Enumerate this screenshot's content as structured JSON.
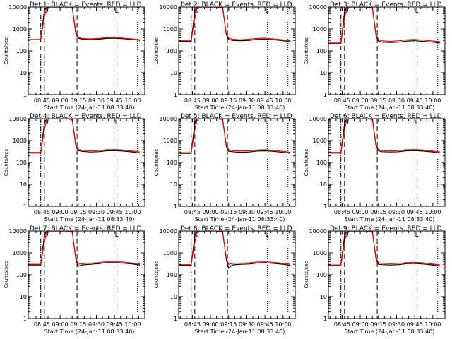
{
  "colors": {
    "events": "#000000",
    "lld": "#ff0000",
    "background": "#ffffff"
  },
  "common": {
    "xlabel": "Start Time (24-Jan-11 08:33:40)",
    "ylabel": "Counts/sec",
    "x_tick_labels": [
      "08:45",
      "09:00",
      "09:15",
      "09:30",
      "09:45",
      "10:00"
    ],
    "y_tick_labels": [
      "1",
      "10",
      "100",
      "1000",
      "10000"
    ],
    "time_ticks": [
      "08:45",
      "09:00",
      "09:15",
      "09:30",
      "09:45",
      "10:00"
    ],
    "xlim": [
      "08:33:40",
      "10:10"
    ],
    "ylim": [
      1,
      10000
    ],
    "y_scale": "log",
    "grid": false,
    "markers": {
      "dash_dot_lines": [
        "08:44"
      ],
      "dashed_lines": [
        "08:47",
        "09:14"
      ],
      "dotted_lines": [
        "09:47",
        "10:04"
      ],
      "glyphs": [
        {
          "time": "08:48",
          "symbol": "O"
        },
        {
          "time": "09:47",
          "symbol": "L"
        }
      ]
    }
  },
  "chart_data": [
    {
      "type": "line",
      "title": "Det 1: BLACK = Events, RED = LLD",
      "x": [
        "08:33",
        "08:44",
        "08:47",
        "08:49",
        "08:51",
        "08:53",
        "08:56",
        "09:00",
        "09:05",
        "09:10",
        "09:13",
        "09:15",
        "09:18",
        "09:25",
        "09:32",
        "09:38",
        "09:45",
        "09:52",
        "10:00",
        "10:06"
      ],
      "series": [
        {
          "name": "BLACK = Events",
          "values": [
            320,
            320,
            7000,
            12000,
            12000,
            12000,
            12000,
            12000,
            12000,
            12000,
            600,
            380,
            340,
            330,
            340,
            370,
            380,
            360,
            330,
            300
          ]
        },
        {
          "name": "RED = LLD",
          "values": [
            330,
            330,
            3500,
            11000,
            12000,
            12000,
            12000,
            12000,
            12000,
            10000,
            700,
            420,
            370,
            350,
            370,
            400,
            410,
            380,
            350,
            320
          ]
        }
      ]
    },
    {
      "type": "line",
      "title": "Det 2: BLACK = Events, RED = LLD",
      "x": [
        "08:33",
        "08:44",
        "08:47",
        "08:49",
        "08:51",
        "08:53",
        "08:56",
        "09:00",
        "09:05",
        "09:10",
        "09:13",
        "09:15",
        "09:18",
        "09:25",
        "09:32",
        "09:38",
        "09:45",
        "09:52",
        "10:00",
        "10:06"
      ],
      "series": [
        {
          "name": "BLACK = Events",
          "values": [
            270,
            270,
            6000,
            12000,
            12000,
            12000,
            12000,
            12000,
            12000,
            12000,
            550,
            330,
            300,
            290,
            300,
            330,
            340,
            320,
            290,
            260
          ]
        },
        {
          "name": "RED = LLD",
          "values": [
            290,
            290,
            3000,
            10000,
            12000,
            12000,
            12000,
            12000,
            12000,
            9000,
            650,
            380,
            340,
            320,
            340,
            370,
            380,
            350,
            320,
            290
          ]
        }
      ]
    },
    {
      "type": "line",
      "title": "Det 3: BLACK = Events, RED = LLD",
      "x": [
        "08:33",
        "08:44",
        "08:47",
        "08:49",
        "08:51",
        "08:53",
        "08:56",
        "09:00",
        "09:05",
        "09:10",
        "09:13",
        "09:15",
        "09:18",
        "09:25",
        "09:32",
        "09:38",
        "09:45",
        "09:52",
        "10:00",
        "10:06"
      ],
      "series": [
        {
          "name": "BLACK = Events",
          "values": [
            210,
            210,
            6000,
            12000,
            12000,
            12000,
            12000,
            12000,
            12000,
            12000,
            500,
            280,
            250,
            240,
            250,
            280,
            290,
            270,
            250,
            230
          ]
        },
        {
          "name": "RED = LLD",
          "values": [
            230,
            230,
            3000,
            10000,
            12000,
            12000,
            12000,
            12000,
            12000,
            9000,
            600,
            320,
            290,
            270,
            290,
            320,
            330,
            310,
            280,
            260
          ]
        }
      ]
    },
    {
      "type": "line",
      "title": "Det 4: BLACK = Events, RED = LLD",
      "x": [
        "08:33",
        "08:44",
        "08:47",
        "08:49",
        "08:51",
        "08:53",
        "08:56",
        "09:00",
        "09:05",
        "09:10",
        "09:13",
        "09:15",
        "09:18",
        "09:25",
        "09:32",
        "09:38",
        "09:45",
        "09:52",
        "10:00",
        "10:06"
      ],
      "series": [
        {
          "name": "BLACK = Events",
          "values": [
            270,
            270,
            6000,
            12000,
            12000,
            12000,
            12000,
            12000,
            12000,
            12000,
            550,
            350,
            320,
            300,
            310,
            340,
            350,
            330,
            300,
            270
          ]
        },
        {
          "name": "RED = LLD",
          "values": [
            290,
            290,
            3000,
            10000,
            12000,
            12000,
            12000,
            12000,
            12000,
            9000,
            650,
            400,
            360,
            340,
            350,
            380,
            390,
            370,
            330,
            300
          ]
        }
      ]
    },
    {
      "type": "line",
      "title": "Det 5: BLACK = Events, RED = LLD",
      "x": [
        "08:33",
        "08:44",
        "08:47",
        "08:49",
        "08:51",
        "08:53",
        "08:56",
        "09:00",
        "09:05",
        "09:10",
        "09:13",
        "09:15",
        "09:18",
        "09:25",
        "09:32",
        "09:38",
        "09:45",
        "09:52",
        "10:00",
        "10:06"
      ],
      "series": [
        {
          "name": "BLACK = Events",
          "values": [
            260,
            260,
            6000,
            12000,
            12000,
            12000,
            12000,
            12000,
            12000,
            12000,
            550,
            330,
            310,
            290,
            300,
            330,
            340,
            320,
            290,
            260
          ]
        },
        {
          "name": "RED = LLD",
          "values": [
            280,
            280,
            3000,
            10000,
            12000,
            12000,
            12000,
            12000,
            12000,
            9000,
            650,
            380,
            350,
            330,
            340,
            370,
            380,
            360,
            320,
            290
          ]
        }
      ]
    },
    {
      "type": "line",
      "title": "Det 6: BLACK = Events, RED = LLD",
      "x": [
        "08:33",
        "08:44",
        "08:47",
        "08:49",
        "08:51",
        "08:53",
        "08:56",
        "09:00",
        "09:05",
        "09:10",
        "09:13",
        "09:15",
        "09:18",
        "09:25",
        "09:32",
        "09:38",
        "09:45",
        "09:52",
        "10:00",
        "10:06"
      ],
      "series": [
        {
          "name": "BLACK = Events",
          "values": [
            270,
            270,
            6000,
            12000,
            12000,
            12000,
            12000,
            12000,
            12000,
            12000,
            550,
            340,
            310,
            300,
            310,
            340,
            350,
            330,
            300,
            270
          ]
        },
        {
          "name": "RED = LLD",
          "values": [
            290,
            290,
            3000,
            10000,
            12000,
            12000,
            12000,
            12000,
            12000,
            9000,
            650,
            390,
            350,
            340,
            350,
            380,
            390,
            370,
            330,
            300
          ]
        }
      ]
    },
    {
      "type": "line",
      "title": "Det 7: BLACK = Events, RED = LLD",
      "x": [
        "08:33",
        "08:44",
        "08:47",
        "08:49",
        "08:51",
        "08:53",
        "08:56",
        "09:00",
        "09:05",
        "09:10",
        "09:13",
        "09:15",
        "09:18",
        "09:25",
        "09:32",
        "09:38",
        "09:45",
        "09:52",
        "10:00",
        "10:06"
      ],
      "series": [
        {
          "name": "BLACK = Events",
          "values": [
            280,
            280,
            6000,
            12000,
            12000,
            12000,
            12000,
            12000,
            12000,
            12000,
            500,
            240,
            280,
            300,
            320,
            360,
            360,
            340,
            310,
            280
          ]
        },
        {
          "name": "RED = LLD",
          "values": [
            300,
            300,
            3000,
            10000,
            12000,
            12000,
            12000,
            12000,
            12000,
            9000,
            600,
            300,
            320,
            340,
            360,
            400,
            400,
            380,
            340,
            310
          ]
        }
      ]
    },
    {
      "type": "line",
      "title": "Det 8: BLACK = Events, RED = LLD",
      "x": [
        "08:33",
        "08:44",
        "08:47",
        "08:49",
        "08:51",
        "08:53",
        "08:56",
        "09:00",
        "09:05",
        "09:10",
        "09:13",
        "09:15",
        "09:18",
        "09:25",
        "09:32",
        "09:38",
        "09:45",
        "09:52",
        "10:00",
        "10:06"
      ],
      "series": [
        {
          "name": "BLACK = Events",
          "values": [
            270,
            270,
            6000,
            12000,
            12000,
            12000,
            12000,
            12000,
            12000,
            12000,
            500,
            200,
            280,
            300,
            310,
            340,
            350,
            330,
            300,
            270
          ]
        },
        {
          "name": "RED = LLD",
          "values": [
            290,
            290,
            3000,
            10000,
            12000,
            12000,
            12000,
            12000,
            12000,
            9000,
            600,
            300,
            330,
            340,
            350,
            380,
            390,
            370,
            330,
            300
          ]
        }
      ]
    },
    {
      "type": "line",
      "title": "Det 9: BLACK = Events, RED = LLD",
      "x": [
        "08:33",
        "08:44",
        "08:47",
        "08:49",
        "08:51",
        "08:53",
        "08:56",
        "09:00",
        "09:05",
        "09:10",
        "09:13",
        "09:15",
        "09:18",
        "09:25",
        "09:32",
        "09:38",
        "09:45",
        "09:52",
        "10:00",
        "10:06"
      ],
      "series": [
        {
          "name": "BLACK = Events",
          "values": [
            260,
            260,
            6000,
            12000,
            12000,
            12000,
            12000,
            12000,
            12000,
            12000,
            500,
            300,
            290,
            280,
            290,
            320,
            330,
            310,
            280,
            250
          ]
        },
        {
          "name": "RED = LLD",
          "values": [
            280,
            280,
            3000,
            10000,
            12000,
            12000,
            12000,
            12000,
            12000,
            9000,
            600,
            360,
            330,
            320,
            330,
            360,
            370,
            350,
            310,
            280
          ]
        }
      ]
    }
  ]
}
